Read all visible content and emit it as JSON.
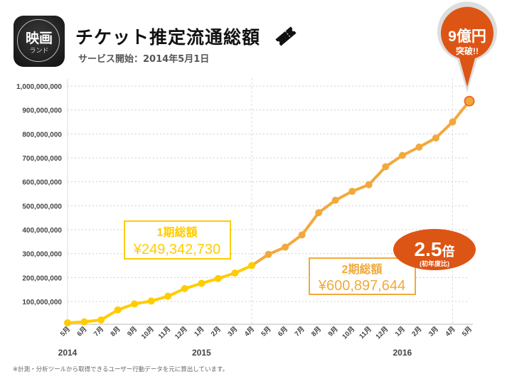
{
  "header": {
    "logo_text": "映画",
    "logo_sub": "ランド",
    "title": "チケット推定流通総額",
    "subtitle": "サービス開始：2014年5月1日",
    "icon": "ticket-icon"
  },
  "callout": {
    "line1": "9億円",
    "line2": "突破!!",
    "color": "#DD5515"
  },
  "ratio_badge": {
    "value": "2.5",
    "unit": "倍",
    "note": "(初年度比)",
    "color": "#DD5515"
  },
  "period1": {
    "label": "1期総額",
    "amount": "¥249,342,730",
    "color": "#FFCC00"
  },
  "period2": {
    "label": "2期総額",
    "amount": "¥600,897,644",
    "color": "#F2A93B"
  },
  "footnote": "※計測・分析ツールから取得できるユーザー行動データを元に算出しています。",
  "chart_data": {
    "type": "line",
    "title": "",
    "xlabel": "",
    "ylabel": "",
    "ylim": [
      0,
      1000000000
    ],
    "yticks": [
      "100,000,000",
      "200,000,000",
      "300,000,000",
      "400,000,000",
      "500,000,000",
      "600,000,000",
      "700,000,000",
      "800,000,000",
      "900,000,000",
      "1,000,000,000"
    ],
    "ytick_values": [
      100000000,
      200000000,
      300000000,
      400000000,
      500000000,
      600000000,
      700000000,
      800000000,
      900000000,
      1000000000
    ],
    "categories": [
      "5月",
      "6月",
      "7月",
      "8月",
      "9月",
      "10月",
      "11月",
      "12月",
      "1月",
      "2月",
      "3月",
      "4月",
      "5月",
      "6月",
      "7月",
      "8月",
      "9月",
      "10月",
      "11月",
      "12月",
      "1月",
      "2月",
      "3月",
      "4月",
      "5月"
    ],
    "year_labels": [
      {
        "label": "2014",
        "index": 0
      },
      {
        "label": "2015",
        "index": 8
      },
      {
        "label": "2016",
        "index": 20
      }
    ],
    "values": [
      11000000,
      15000000,
      23000000,
      65000000,
      90000000,
      102000000,
      122000000,
      154000000,
      176000000,
      196000000,
      219000000,
      250000000,
      297000000,
      327000000,
      378000000,
      471000000,
      523000000,
      560000000,
      588000000,
      663000000,
      710000000,
      745000000,
      783000000,
      850000000,
      937000000
    ],
    "grid": true,
    "series_colors": {
      "first_year": "#FFCC00",
      "second_year": "#F2A93B",
      "last_point": "#F06A2A"
    }
  }
}
